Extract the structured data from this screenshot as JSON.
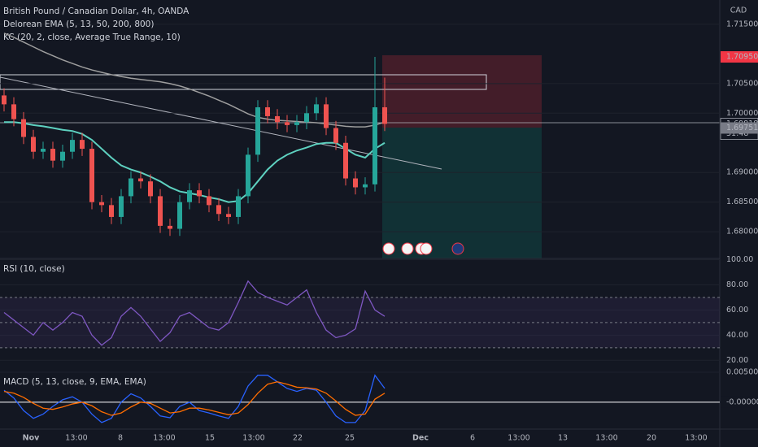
{
  "chart_data": [
    {
      "type": "candlestick",
      "title": "British Pound / Canadian Dollar, 4h, OANDA",
      "indicators": [
        "Delorean EMA (5, 13, 50, 200, 800)",
        "KC (20, 2, close, Average True Range, 10)"
      ],
      "currency": "CAD",
      "open": [
        1.703,
        1.7015,
        1.699,
        1.696,
        1.6935,
        1.694,
        1.692,
        1.6935,
        1.6955,
        1.694,
        1.685,
        1.6845,
        1.6825,
        1.686,
        1.689,
        1.6885,
        1.686,
        1.681,
        1.6805,
        1.685,
        1.687,
        1.686,
        1.6845,
        1.683,
        1.6825,
        1.686,
        1.693,
        1.701,
        1.6995,
        1.6985,
        1.698,
        1.6985,
        1.7,
        1.7015,
        1.6975,
        1.695,
        1.689,
        1.6875,
        1.688,
        1.701
      ],
      "high": [
        1.7042,
        1.7027,
        1.7002,
        1.6972,
        1.6952,
        1.6952,
        1.6947,
        1.6967,
        1.6967,
        1.6952,
        1.6862,
        1.6857,
        1.6872,
        1.6902,
        1.6902,
        1.6897,
        1.6872,
        1.6822,
        1.6862,
        1.6882,
        1.6882,
        1.6872,
        1.6857,
        1.6842,
        1.6872,
        1.6942,
        1.7022,
        1.7022,
        1.7007,
        1.6997,
        1.6997,
        1.7012,
        1.7027,
        1.7027,
        1.6987,
        1.6962,
        1.6902,
        1.6892,
        1.7095,
        1.706
      ],
      "low": [
        1.7003,
        1.6978,
        1.6948,
        1.6923,
        1.6923,
        1.6908,
        1.6908,
        1.6923,
        1.6928,
        1.6838,
        1.6833,
        1.6813,
        1.6813,
        1.6848,
        1.6873,
        1.6848,
        1.6798,
        1.6793,
        1.6793,
        1.6838,
        1.6848,
        1.6833,
        1.6818,
        1.6813,
        1.6813,
        1.6848,
        1.6918,
        1.6983,
        1.6973,
        1.6968,
        1.6968,
        1.6973,
        1.6988,
        1.6963,
        1.6938,
        1.6878,
        1.6863,
        1.6863,
        1.6868,
        1.697
      ],
      "close": [
        1.7015,
        1.699,
        1.696,
        1.6935,
        1.694,
        1.692,
        1.6935,
        1.6955,
        1.694,
        1.685,
        1.6845,
        1.6825,
        1.686,
        1.689,
        1.6885,
        1.686,
        1.681,
        1.6805,
        1.685,
        1.687,
        1.686,
        1.6845,
        1.683,
        1.6825,
        1.686,
        1.693,
        1.701,
        1.6995,
        1.6985,
        1.698,
        1.6985,
        1.7,
        1.7015,
        1.6975,
        1.695,
        1.689,
        1.6875,
        1.688,
        1.701,
        1.6982
      ],
      "up_color": "#26a69a",
      "down_color": "#ef5350",
      "overlays": [
        {
          "color": "#9e9e9e",
          "values": [
            1.7135,
            1.7128,
            1.712,
            1.7112,
            1.7104,
            1.7097,
            1.709,
            1.7084,
            1.7078,
            1.7073,
            1.7069,
            1.7065,
            1.7062,
            1.7059,
            1.7057,
            1.7055,
            1.7053,
            1.705,
            1.7046,
            1.7041,
            1.7035,
            1.7029,
            1.7022,
            1.7015,
            1.7007,
            1.6999,
            1.6993,
            1.699,
            1.6988,
            1.6987,
            1.6986,
            1.6985,
            1.6984,
            1.6982,
            1.698,
            1.6978,
            1.6977,
            1.6977,
            1.698,
            1.6985
          ]
        },
        {
          "color": "#5ed1c0",
          "values": [
            1.6985,
            1.6985,
            1.6983,
            1.698,
            1.6978,
            1.6975,
            1.6972,
            1.697,
            1.6965,
            1.6955,
            1.694,
            1.6925,
            1.6912,
            1.6905,
            1.69,
            1.6893,
            1.6885,
            1.6875,
            1.6868,
            1.6865,
            1.6862,
            1.6858,
            1.6855,
            1.685,
            1.6852,
            1.6865,
            1.6885,
            1.6905,
            1.692,
            1.693,
            1.6937,
            1.6942,
            1.6948,
            1.695,
            1.695,
            1.694,
            1.693,
            1.6925,
            1.694,
            1.695
          ]
        }
      ],
      "ylim": [
        1.6755,
        1.7191
      ],
      "yticks": [
        {
          "value": 1.715,
          "label": "1.71500"
        },
        {
          "value": 1.705,
          "label": "1.70500"
        },
        {
          "value": 1.7,
          "label": "1.70000"
        },
        {
          "value": 1.69,
          "label": "1.69000"
        },
        {
          "value": 1.685,
          "label": "1.68500"
        },
        {
          "value": 1.68,
          "label": "1.68000"
        }
      ],
      "price_badges": [
        {
          "value": 1.7095,
          "label": "1.70950",
          "color": "#f23645"
        },
        {
          "value": 1.69818,
          "label": "1.69818",
          "countdown": "31:48",
          "color": "#131722"
        },
        {
          "value": 1.69751,
          "label": "1.69751",
          "color": "#787b86"
        }
      ],
      "x_labels": [
        "Nov",
        "13:00",
        "8",
        "13:00",
        "15",
        "13:00",
        "22",
        "25",
        "Dec",
        "6",
        "13:00",
        "13",
        "13:00",
        "20",
        "13:00"
      ]
    },
    {
      "type": "line",
      "title": "RSI (10, close)",
      "series": [
        {
          "color": "#7e57c2",
          "values": [
            58,
            52,
            46,
            40,
            50,
            44,
            50,
            58,
            55,
            40,
            32,
            38,
            55,
            62,
            55,
            45,
            35,
            42,
            55,
            58,
            52,
            46,
            44,
            50,
            66,
            83,
            74,
            70,
            67,
            64,
            70,
            76,
            58,
            44,
            38,
            40,
            45,
            75,
            60,
            55
          ]
        }
      ],
      "ylim": [
        10.5,
        101
      ],
      "yticks": [
        {
          "value": 100,
          "label": "100.00"
        },
        {
          "value": 80,
          "label": "80.00"
        },
        {
          "value": 60,
          "label": "60.00"
        },
        {
          "value": 40,
          "label": "40.00"
        },
        {
          "value": 20,
          "label": "20.00"
        }
      ],
      "bands": [
        70,
        50,
        30
      ]
    },
    {
      "type": "line",
      "title": "MACD (5, 13, close, 9, EMA, EMA)",
      "series": [
        {
          "color": "#2962ff",
          "values": [
            0.002,
            0.0007,
            -0.0014,
            -0.0027,
            -0.002,
            -0.0007,
            0.0004,
            0.0009,
            0.0,
            -0.002,
            -0.0034,
            -0.0027,
            0.0,
            0.0014,
            0.0007,
            -0.0007,
            -0.0023,
            -0.0026,
            -0.0007,
            0.0,
            -0.0014,
            -0.0018,
            -0.0023,
            -0.0027,
            -0.0007,
            0.0027,
            0.0045,
            0.0045,
            0.0034,
            0.0023,
            0.0018,
            0.0023,
            0.002,
            0.0,
            -0.0023,
            -0.0034,
            -0.0034,
            -0.0014,
            0.0045,
            0.0023
          ]
        },
        {
          "color": "#ff6d00",
          "values": [
            0.0018,
            0.0015,
            0.0008,
            -0.0002,
            -0.001,
            -0.0012,
            -0.0008,
            -0.0003,
            0.0,
            -0.0006,
            -0.0016,
            -0.0022,
            -0.0018,
            -0.0008,
            0.0,
            -0.0002,
            -0.001,
            -0.0018,
            -0.0016,
            -0.001,
            -0.001,
            -0.0013,
            -0.0017,
            -0.0021,
            -0.0018,
            -0.0004,
            0.0015,
            0.003,
            0.0034,
            0.003,
            0.0025,
            0.0024,
            0.0022,
            0.0015,
            0.0002,
            -0.0012,
            -0.0022,
            -0.002,
            0.0005,
            0.0015
          ]
        }
      ],
      "ylim": [
        -0.0045,
        0.005
      ],
      "yticks": [
        {
          "value": 0.005,
          "label": "0.00500"
        },
        {
          "value": 0,
          "label": "-0.00000"
        }
      ]
    }
  ]
}
